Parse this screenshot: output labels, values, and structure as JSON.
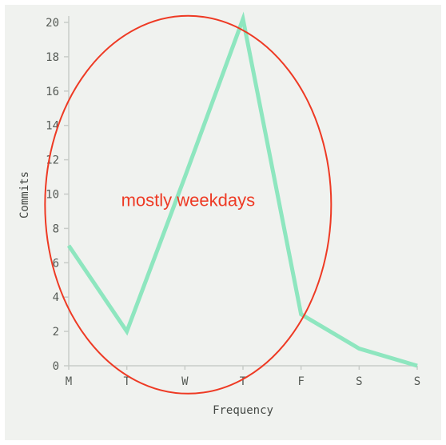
{
  "chart_data": {
    "type": "line",
    "title": "",
    "xlabel": "Frequency",
    "ylabel": "Commits",
    "categories": [
      "M",
      "T",
      "W",
      "T",
      "F",
      "S",
      "S"
    ],
    "series": [
      {
        "values": [
          7,
          2,
          11,
          20.2,
          3,
          1,
          0
        ]
      }
    ],
    "ylim": [
      0,
      20
    ],
    "yticks": [
      0,
      2,
      4,
      6,
      8,
      10,
      12,
      14,
      16,
      18,
      20
    ],
    "grid": false,
    "annotations": [
      {
        "text": "mostly weekdays",
        "shape": "ellipse",
        "center": [
          "W",
          10.5
        ],
        "color": "#ee3a24"
      }
    ],
    "colors": {
      "line": "#8ee6bf",
      "axis": "#c8ccc8",
      "annotation": "#ee3a24",
      "background": "#f0f2ef"
    }
  }
}
